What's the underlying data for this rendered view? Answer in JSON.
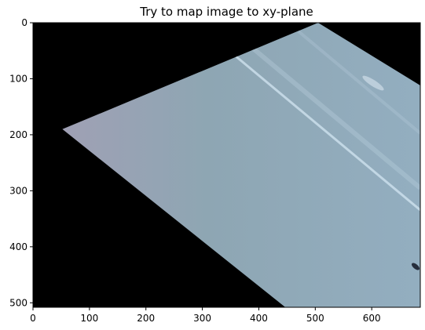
{
  "chart_data": {
    "type": "image",
    "title": "Try to map image to xy-plane",
    "xlabel": "",
    "ylabel": "",
    "xlim": [
      0,
      686
    ],
    "ylim": [
      508,
      0
    ],
    "x_ticks": [
      0,
      100,
      200,
      300,
      400,
      500,
      600
    ],
    "y_ticks": [
      0,
      100,
      200,
      300,
      400,
      500
    ],
    "background_color": "#000000",
    "warped_image_corners": [
      [
        52,
        190
      ],
      [
        505,
        0
      ],
      [
        686,
        112
      ],
      [
        686,
        508
      ],
      [
        447,
        508
      ]
    ],
    "image_colors": {
      "left": "#a39fb5",
      "middle": "#8ea6b3",
      "right": "#93aec0",
      "streak": "#d3e6f2"
    },
    "grid": false
  }
}
